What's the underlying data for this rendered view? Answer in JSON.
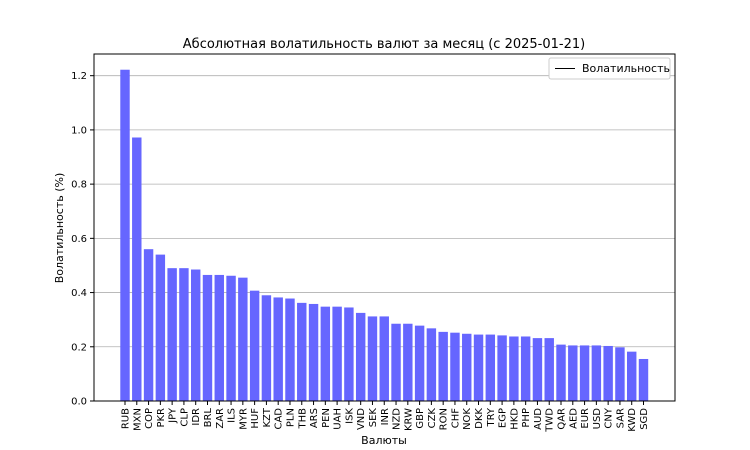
{
  "chart_data": {
    "type": "bar",
    "title": "Абсолютная волатильность валют за месяц (с 2025-01-21)",
    "xlabel": "Валюты",
    "ylabel": "Волатильность (%)",
    "ylim": [
      0,
      1.28
    ],
    "yticks": [
      "0.0",
      "0.2",
      "0.4",
      "0.6",
      "0.8",
      "1.0",
      "1.2"
    ],
    "grid": "horizontal",
    "legend": {
      "placement": "top-right",
      "entries": [
        "Волатильность"
      ]
    },
    "bar_color": "#6666ff",
    "categories": [
      "RUB",
      "MXN",
      "COP",
      "PKR",
      "JPY",
      "CLP",
      "IDR",
      "BRL",
      "ZAR",
      "ILS",
      "MYR",
      "HUF",
      "KZT",
      "CAD",
      "PLN",
      "THB",
      "ARS",
      "PEN",
      "UAH",
      "ISK",
      "VND",
      "SEK",
      "INR",
      "NZD",
      "KRW",
      "GBP",
      "CZK",
      "RON",
      "CHF",
      "NOK",
      "DKK",
      "TRY",
      "EGP",
      "HKD",
      "PHP",
      "AUD",
      "TWD",
      "QAR",
      "AED",
      "EUR",
      "USD",
      "CNY",
      "SAR",
      "KWD",
      "SGD"
    ],
    "values": [
      1.222,
      0.972,
      0.56,
      0.54,
      0.49,
      0.49,
      0.485,
      0.465,
      0.465,
      0.462,
      0.455,
      0.407,
      0.39,
      0.382,
      0.378,
      0.362,
      0.358,
      0.348,
      0.348,
      0.345,
      0.325,
      0.312,
      0.312,
      0.285,
      0.285,
      0.278,
      0.268,
      0.255,
      0.252,
      0.248,
      0.245,
      0.245,
      0.242,
      0.238,
      0.238,
      0.232,
      0.232,
      0.208,
      0.205,
      0.205,
      0.205,
      0.203,
      0.198,
      0.182,
      0.155
    ]
  }
}
